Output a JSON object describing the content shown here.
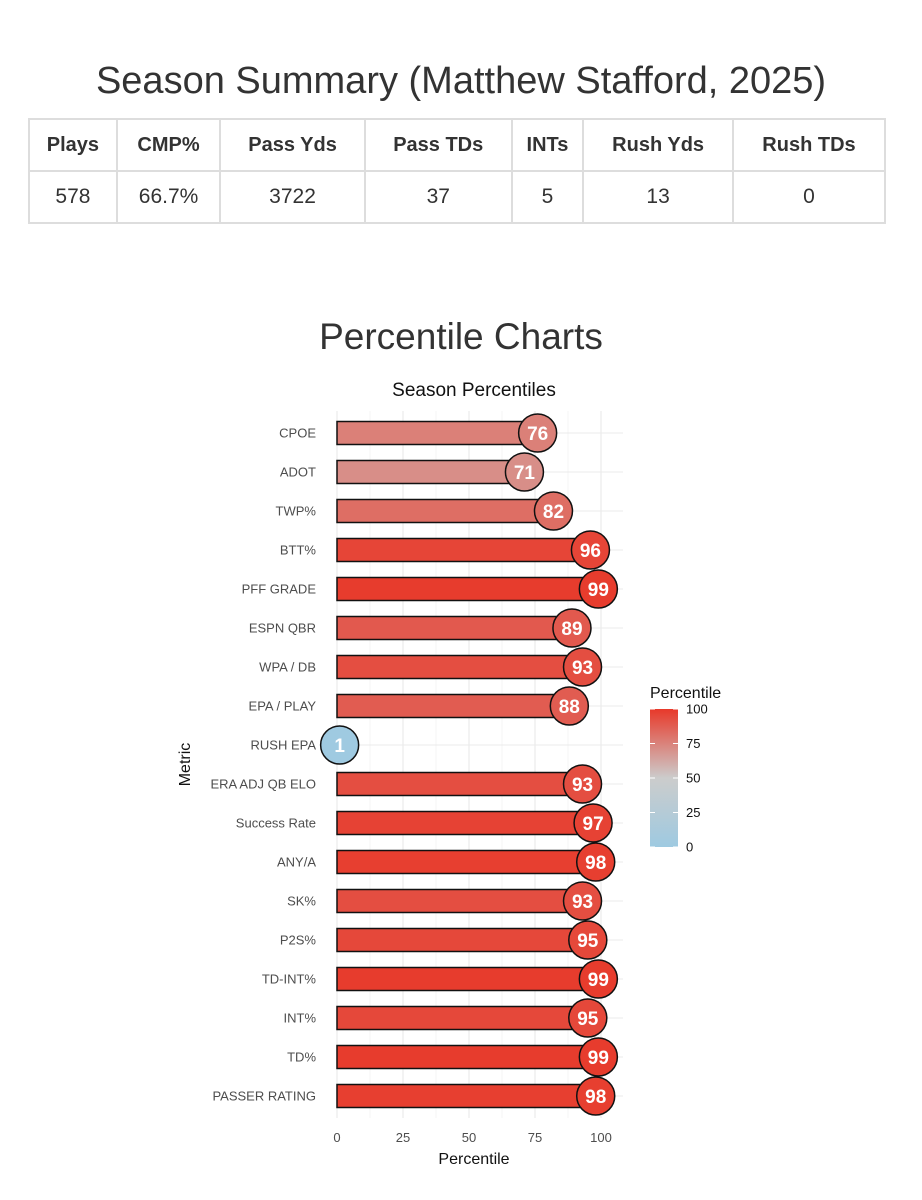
{
  "page_title": "Season Summary (Matthew Stafford, 2025)",
  "summary_table": {
    "headers": [
      "Plays",
      "CMP%",
      "Pass Yds",
      "Pass TDs",
      "INTs",
      "Rush Yds",
      "Rush TDs"
    ],
    "row": [
      "578",
      "66.7%",
      "3722",
      "37",
      "5",
      "13",
      "0"
    ]
  },
  "section_title": "Percentile Charts",
  "chart_data": {
    "type": "bar",
    "orientation": "horizontal",
    "title": "Season Percentiles",
    "xlabel": "Percentile",
    "ylabel": "Metric",
    "xlim": [
      0,
      100
    ],
    "xticks": [
      0,
      25,
      50,
      75,
      100
    ],
    "categories": [
      "CPOE",
      "ADOT",
      "TWP%",
      "BTT%",
      "PFF GRADE",
      "ESPN QBR",
      "WPA / DB",
      "EPA / PLAY",
      "RUSH EPA",
      "ERA ADJ QB ELO",
      "Success Rate",
      "ANY/A",
      "SK%",
      "P2S%",
      "TD-INT%",
      "INT%",
      "TD%",
      "PASSER RATING"
    ],
    "values": [
      76,
      71,
      82,
      96,
      99,
      89,
      93,
      88,
      1,
      93,
      97,
      98,
      93,
      95,
      99,
      95,
      99,
      98
    ],
    "legend": {
      "title": "Percentile",
      "ticks": [
        0,
        25,
        50,
        75,
        100
      ],
      "colors": {
        "low": "#9ecae1",
        "mid": "#cccccc",
        "high": "#e8392a"
      },
      "position": "right"
    }
  }
}
